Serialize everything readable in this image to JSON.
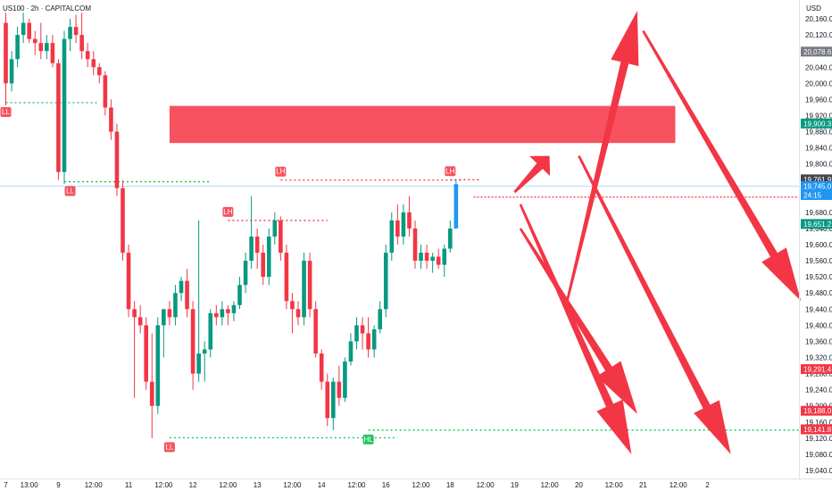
{
  "header": {
    "symbol_line": "US100 · 2h · CAPITALCOM",
    "currency": "USD"
  },
  "colors": {
    "up": "#089981",
    "down": "#f23645",
    "zone": "#f7525f",
    "arrow": "#f23645",
    "blue": "#2196f3",
    "resistance": "#f23645",
    "support": "#00c853"
  },
  "chart_data": {
    "type": "candlestick",
    "y_axis": {
      "range": [
        19020,
        20200
      ],
      "ticks": [
        20160,
        20120,
        20080,
        20040,
        20000,
        19960,
        19920,
        19880,
        19840,
        19800,
        19760,
        19720,
        19680,
        19640,
        19600,
        19560,
        19520,
        19480,
        19440,
        19400,
        19360,
        19320,
        19280,
        19240,
        19200,
        19160,
        19120,
        19080,
        19040
      ],
      "tick_labels": [
        "20,160.0",
        "20,120.0",
        "20,080.0",
        "20,040.0",
        "20,000.0",
        "19,960.0",
        "19,920.0",
        "19,880.0",
        "19,840.0",
        "19,800.0",
        "19,760.0",
        "19,720.0",
        "19,680.0",
        "19,640.0",
        "19,600.0",
        "19,560.0",
        "19,520.0",
        "19,480.0",
        "19,440.0",
        "19,400.0",
        "19,360.0",
        "19,320.0",
        "19,280.0",
        "19,240.0",
        "19,200.0",
        "19,160.0",
        "19,120.0",
        "19,080.0",
        "19,040.0"
      ]
    },
    "x_axis": {
      "labels": [
        "7",
        "13:00",
        "9",
        "12:00",
        "11",
        "12:00",
        "12",
        "12:00",
        "13",
        "12:00",
        "14",
        "12:00",
        "16",
        "12:00",
        "18",
        "12:00",
        "19",
        "12:00",
        "20",
        "12:00",
        "21",
        "12:00",
        "2"
      ],
      "bar_index": [
        0,
        4,
        9,
        15,
        21,
        27,
        32,
        38,
        43,
        49,
        54,
        60,
        65,
        71,
        76,
        82,
        87,
        93,
        98,
        104,
        109,
        115,
        120
      ]
    },
    "candles": [
      {
        "o": 20150,
        "h": 20175,
        "l": 19945,
        "c": 20000
      },
      {
        "o": 20000,
        "h": 20080,
        "l": 19980,
        "c": 20060
      },
      {
        "o": 20060,
        "h": 20140,
        "l": 20040,
        "c": 20120
      },
      {
        "o": 20120,
        "h": 20175,
        "l": 20100,
        "c": 20150
      },
      {
        "o": 20150,
        "h": 20160,
        "l": 20100,
        "c": 20110
      },
      {
        "o": 20110,
        "h": 20130,
        "l": 20070,
        "c": 20100
      },
      {
        "o": 20100,
        "h": 20150,
        "l": 20060,
        "c": 20080
      },
      {
        "o": 20080,
        "h": 20120,
        "l": 20060,
        "c": 20100
      },
      {
        "o": 20100,
        "h": 20120,
        "l": 20040,
        "c": 20050
      },
      {
        "o": 20050,
        "h": 20060,
        "l": 19760,
        "c": 19780
      },
      {
        "o": 19780,
        "h": 20130,
        "l": 19750,
        "c": 20110
      },
      {
        "o": 20110,
        "h": 20160,
        "l": 20080,
        "c": 20140
      },
      {
        "o": 20140,
        "h": 20170,
        "l": 20100,
        "c": 20120
      },
      {
        "o": 20120,
        "h": 20175,
        "l": 20060,
        "c": 20080
      },
      {
        "o": 20080,
        "h": 20100,
        "l": 20040,
        "c": 20060
      },
      {
        "o": 20060,
        "h": 20080,
        "l": 20020,
        "c": 20040
      },
      {
        "o": 20040,
        "h": 20050,
        "l": 20000,
        "c": 20020
      },
      {
        "o": 20020,
        "h": 20030,
        "l": 19920,
        "c": 19940
      },
      {
        "o": 19940,
        "h": 19960,
        "l": 19860,
        "c": 19880
      },
      {
        "o": 19880,
        "h": 19900,
        "l": 19720,
        "c": 19740
      },
      {
        "o": 19740,
        "h": 19760,
        "l": 19560,
        "c": 19580
      },
      {
        "o": 19580,
        "h": 19600,
        "l": 19420,
        "c": 19440
      },
      {
        "o": 19440,
        "h": 19460,
        "l": 19220,
        "c": 19420
      },
      {
        "o": 19420,
        "h": 19450,
        "l": 19380,
        "c": 19400
      },
      {
        "o": 19400,
        "h": 19420,
        "l": 19240,
        "c": 19260
      },
      {
        "o": 19260,
        "h": 19380,
        "l": 19120,
        "c": 19200
      },
      {
        "o": 19200,
        "h": 19420,
        "l": 19180,
        "c": 19400
      },
      {
        "o": 19400,
        "h": 19440,
        "l": 19320,
        "c": 19440
      },
      {
        "o": 19440,
        "h": 19460,
        "l": 19400,
        "c": 19420
      },
      {
        "o": 19420,
        "h": 19500,
        "l": 19400,
        "c": 19480
      },
      {
        "o": 19480,
        "h": 19520,
        "l": 19460,
        "c": 19510
      },
      {
        "o": 19510,
        "h": 19540,
        "l": 19420,
        "c": 19440
      },
      {
        "o": 19440,
        "h": 19460,
        "l": 19240,
        "c": 19280
      },
      {
        "o": 19280,
        "h": 19660,
        "l": 19260,
        "c": 19330
      },
      {
        "o": 19330,
        "h": 19360,
        "l": 19260,
        "c": 19340
      },
      {
        "o": 19340,
        "h": 19440,
        "l": 19320,
        "c": 19430
      },
      {
        "o": 19430,
        "h": 19450,
        "l": 19400,
        "c": 19420
      },
      {
        "o": 19420,
        "h": 19460,
        "l": 19400,
        "c": 19440
      },
      {
        "o": 19440,
        "h": 19450,
        "l": 19400,
        "c": 19430
      },
      {
        "o": 19430,
        "h": 19460,
        "l": 19410,
        "c": 19450
      },
      {
        "o": 19450,
        "h": 19520,
        "l": 19440,
        "c": 19500
      },
      {
        "o": 19500,
        "h": 19580,
        "l": 19480,
        "c": 19560
      },
      {
        "o": 19560,
        "h": 19720,
        "l": 19540,
        "c": 19620
      },
      {
        "o": 19620,
        "h": 19640,
        "l": 19540,
        "c": 19580
      },
      {
        "o": 19580,
        "h": 19600,
        "l": 19500,
        "c": 19520
      },
      {
        "o": 19520,
        "h": 19640,
        "l": 19500,
        "c": 19620
      },
      {
        "o": 19620,
        "h": 19680,
        "l": 19600,
        "c": 19660
      },
      {
        "o": 19660,
        "h": 19670,
        "l": 19560,
        "c": 19580
      },
      {
        "o": 19580,
        "h": 19600,
        "l": 19440,
        "c": 19460
      },
      {
        "o": 19460,
        "h": 19480,
        "l": 19380,
        "c": 19440
      },
      {
        "o": 19440,
        "h": 19460,
        "l": 19400,
        "c": 19420
      },
      {
        "o": 19420,
        "h": 19580,
        "l": 19400,
        "c": 19560
      },
      {
        "o": 19560,
        "h": 19580,
        "l": 19420,
        "c": 19440
      },
      {
        "o": 19440,
        "h": 19460,
        "l": 19320,
        "c": 19330
      },
      {
        "o": 19330,
        "h": 19340,
        "l": 19240,
        "c": 19260
      },
      {
        "o": 19260,
        "h": 19280,
        "l": 19150,
        "c": 19170
      },
      {
        "o": 19170,
        "h": 19270,
        "l": 19140,
        "c": 19260
      },
      {
        "o": 19260,
        "h": 19300,
        "l": 19200,
        "c": 19220
      },
      {
        "o": 19220,
        "h": 19320,
        "l": 19210,
        "c": 19310
      },
      {
        "o": 19310,
        "h": 19380,
        "l": 19300,
        "c": 19360
      },
      {
        "o": 19360,
        "h": 19420,
        "l": 19340,
        "c": 19400
      },
      {
        "o": 19400,
        "h": 19420,
        "l": 19340,
        "c": 19380
      },
      {
        "o": 19380,
        "h": 19420,
        "l": 19320,
        "c": 19340
      },
      {
        "o": 19340,
        "h": 19400,
        "l": 19320,
        "c": 19390
      },
      {
        "o": 19390,
        "h": 19460,
        "l": 19380,
        "c": 19440
      },
      {
        "o": 19440,
        "h": 19600,
        "l": 19420,
        "c": 19580
      },
      {
        "o": 19580,
        "h": 19680,
        "l": 19560,
        "c": 19660
      },
      {
        "o": 19660,
        "h": 19700,
        "l": 19600,
        "c": 19620
      },
      {
        "o": 19620,
        "h": 19700,
        "l": 19600,
        "c": 19680
      },
      {
        "o": 19680,
        "h": 19720,
        "l": 19620,
        "c": 19640
      },
      {
        "o": 19640,
        "h": 19660,
        "l": 19540,
        "c": 19560
      },
      {
        "o": 19560,
        "h": 19600,
        "l": 19540,
        "c": 19580
      },
      {
        "o": 19580,
        "h": 19600,
        "l": 19540,
        "c": 19560
      },
      {
        "o": 19560,
        "h": 19580,
        "l": 19530,
        "c": 19570
      },
      {
        "o": 19570,
        "h": 19590,
        "l": 19540,
        "c": 19550
      },
      {
        "o": 19550,
        "h": 19600,
        "l": 19520,
        "c": 19590
      },
      {
        "o": 19590,
        "h": 19660,
        "l": 19580,
        "c": 19640
      },
      {
        "o": 19640,
        "h": 19760,
        "l": 19640,
        "c": 19750
      }
    ],
    "zone": {
      "top": 19944,
      "bottom": 19852,
      "x_start_bar": 28.0,
      "x_end_bar": 114.5
    },
    "levels": [
      {
        "label": "LL",
        "price": 19952,
        "from_bar": 0,
        "to_bar": 16,
        "type": "support",
        "label_at": 0,
        "label_above": false
      },
      {
        "label": "LL",
        "price": 19756,
        "from_bar": 10,
        "to_bar": 35,
        "type": "support",
        "label_at": 11,
        "label_above": false
      },
      {
        "label": "LH",
        "price": 19660,
        "from_bar": 38,
        "to_bar": 55,
        "type": "resistance",
        "label_at": 38,
        "label_above": true
      },
      {
        "label": "LH",
        "price": 19760,
        "from_bar": 47,
        "to_bar": 78,
        "type": "resistance",
        "label_at": 47,
        "label_above": true
      },
      {
        "label": "LH",
        "price": 19761,
        "from_bar": 76,
        "to_bar": 81,
        "type": "resistance",
        "label_at": 76,
        "label_above": true
      },
      {
        "label": "LL",
        "price": 19121,
        "from_bar": 28,
        "to_bar": 67,
        "type": "support",
        "label_at": 28,
        "label_above": false
      },
      {
        "label": "HL",
        "price": 19140,
        "from_bar": 62,
        "to_bar": 140,
        "type": "support",
        "label_at": 62,
        "label_above": false
      }
    ],
    "current_price_line": 19718,
    "price_line_blue": 19745,
    "arrows": [
      {
        "from": [
          96,
          19460
        ],
        "to": [
          108,
          20180
        ]
      },
      {
        "from": [
          87,
          19730
        ],
        "to": [
          93,
          19820
        ]
      },
      {
        "from": [
          109,
          20130
        ],
        "to": [
          136,
          19460
        ]
      },
      {
        "from": [
          98,
          19820
        ],
        "to": [
          124,
          19080
        ]
      },
      {
        "from": [
          88,
          19700
        ],
        "to": [
          107,
          19080
        ]
      },
      {
        "from": [
          88,
          19640
        ],
        "to": [
          108,
          19180
        ]
      }
    ],
    "price_tags": [
      {
        "price": 20078.6,
        "label": "20,078.6",
        "bg": "#787b86"
      },
      {
        "price": 19900.3,
        "label": "19,900.3",
        "bg": "#089981"
      },
      {
        "price": 19761.9,
        "label": "19,761.9",
        "bg": "#434651"
      },
      {
        "price": 19745.0,
        "label": "19,745.0",
        "bg": "#2196f3"
      },
      {
        "price": 19723.0,
        "label": "24:15",
        "bg": "#2196f3"
      },
      {
        "price": 19651.2,
        "label": "19,651.2",
        "bg": "#089981"
      },
      {
        "price": 19291.4,
        "label": "19,291.4",
        "bg": "#f23645"
      },
      {
        "price": 19188.0,
        "label": "19,188.0",
        "bg": "#f23645"
      },
      {
        "price": 19141.8,
        "label": "19,141.8",
        "bg": "#f23645"
      }
    ]
  }
}
